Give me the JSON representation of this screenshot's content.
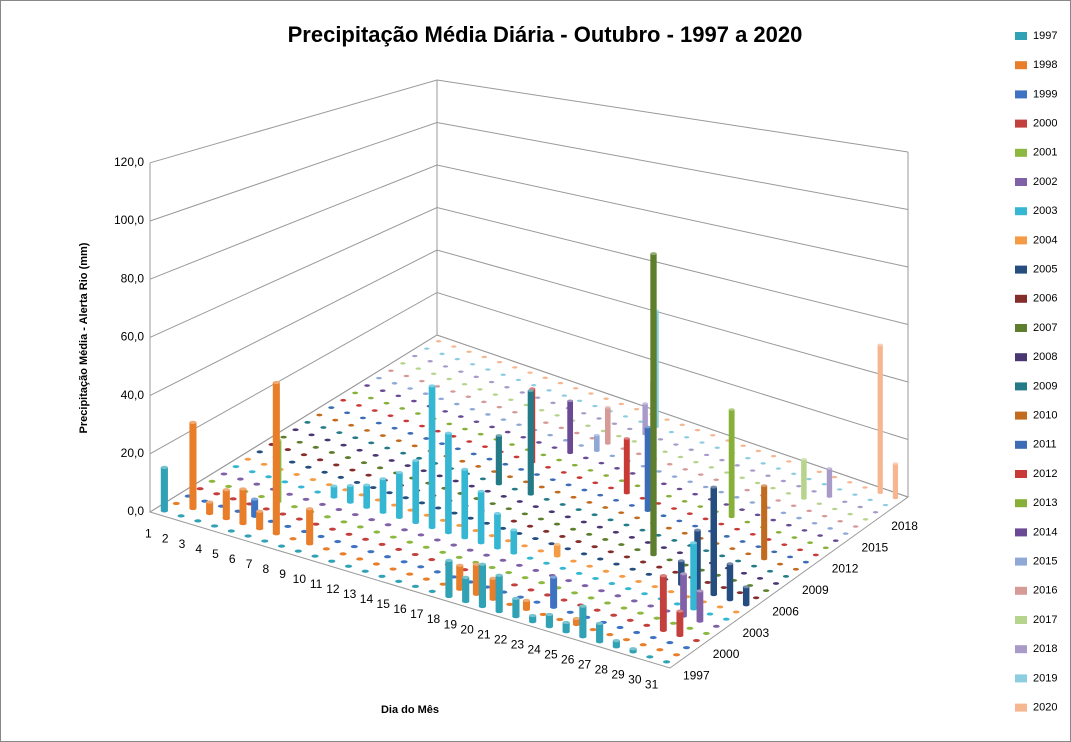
{
  "chart_data": {
    "type": "bar3d",
    "title": "Precipitação Média Diária - Outubro - 1997 a 2020",
    "x_label": "Dia do Mês",
    "y_label": "Precipitação Média - Alerta Rio (mm)",
    "categories": [
      "1",
      "2",
      "3",
      "4",
      "5",
      "6",
      "7",
      "8",
      "9",
      "10",
      "11",
      "12",
      "13",
      "14",
      "15",
      "16",
      "17",
      "18",
      "19",
      "20",
      "21",
      "22",
      "23",
      "24",
      "25",
      "26",
      "27",
      "28",
      "29",
      "30",
      "31"
    ],
    "ylim": [
      0,
      120
    ],
    "yticks": [
      {
        "value": 0,
        "label": "0,0"
      },
      {
        "value": 20,
        "label": "20,0"
      },
      {
        "value": 40,
        "label": "40,0"
      },
      {
        "value": 60,
        "label": "60,0"
      },
      {
        "value": 80,
        "label": "80,0"
      },
      {
        "value": 100,
        "label": "100,0"
      },
      {
        "value": 120,
        "label": "120,0"
      }
    ],
    "grid": true,
    "series": [
      {
        "name": "1997",
        "color": "#31a2b5",
        "values": [
          15,
          0,
          0,
          0,
          0,
          0,
          0,
          0,
          0,
          0,
          0,
          0,
          0,
          0,
          0,
          0,
          0,
          12,
          8,
          14,
          12,
          6,
          2,
          4,
          3,
          10,
          6,
          2,
          1,
          0,
          0
        ]
      },
      {
        "name": "1998",
        "color": "#e87d2a",
        "values": [
          0,
          30,
          4,
          10,
          12,
          6,
          52,
          0,
          12,
          0,
          0,
          0,
          0,
          0,
          0,
          0,
          0,
          8,
          10,
          7,
          0,
          3,
          0,
          0,
          2,
          0,
          0,
          0,
          0,
          0,
          0
        ]
      },
      {
        "name": "1999",
        "color": "#3e73c4",
        "values": [
          0,
          0,
          0,
          0,
          6,
          0,
          0,
          0,
          0,
          0,
          0,
          0,
          0,
          0,
          0,
          0,
          0,
          0,
          0,
          0,
          0,
          0,
          10,
          0,
          0,
          0,
          0,
          0,
          0,
          0,
          0
        ]
      },
      {
        "name": "2000",
        "color": "#c4403c",
        "values": [
          0,
          0,
          0,
          0,
          0,
          0,
          0,
          0,
          0,
          0,
          0,
          0,
          0,
          0,
          0,
          0,
          0,
          0,
          0,
          0,
          0,
          0,
          0,
          0,
          0,
          0,
          0,
          0,
          18,
          8,
          0
        ]
      },
      {
        "name": "2001",
        "color": "#8cb83f",
        "values": [
          0,
          0,
          0,
          0,
          22,
          0,
          0,
          0,
          0,
          0,
          0,
          0,
          0,
          0,
          0,
          0,
          0,
          0,
          0,
          0,
          0,
          0,
          0,
          0,
          0,
          0,
          0,
          0,
          0,
          0,
          0
        ]
      },
      {
        "name": "2002",
        "color": "#8061a8",
        "values": [
          0,
          0,
          0,
          0,
          0,
          0,
          0,
          0,
          0,
          0,
          0,
          0,
          0,
          0,
          0,
          0,
          0,
          0,
          0,
          0,
          0,
          0,
          0,
          0,
          0,
          0,
          0,
          0,
          14,
          10,
          0
        ]
      },
      {
        "name": "2003",
        "color": "#35b7d4",
        "values": [
          0,
          0,
          0,
          0,
          0,
          0,
          4,
          6,
          8,
          12,
          16,
          22,
          50,
          35,
          24,
          18,
          12,
          8,
          0,
          0,
          0,
          0,
          0,
          0,
          0,
          0,
          0,
          0,
          22,
          0,
          0
        ]
      },
      {
        "name": "2004",
        "color": "#f59b45",
        "values": [
          0,
          0,
          0,
          0,
          0,
          0,
          0,
          0,
          0,
          0,
          0,
          0,
          0,
          0,
          0,
          0,
          0,
          0,
          0,
          4,
          0,
          0,
          0,
          0,
          0,
          0,
          0,
          0,
          0,
          0,
          0
        ]
      },
      {
        "name": "2005",
        "color": "#264d7f",
        "values": [
          0,
          0,
          0,
          0,
          0,
          0,
          0,
          0,
          0,
          0,
          0,
          0,
          0,
          0,
          0,
          0,
          0,
          0,
          0,
          0,
          0,
          0,
          0,
          0,
          0,
          0,
          8,
          20,
          36,
          12,
          6
        ]
      },
      {
        "name": "2006",
        "color": "#842d2b",
        "values": [
          0,
          0,
          0,
          0,
          0,
          0,
          0,
          0,
          0,
          0,
          0,
          0,
          0,
          0,
          0,
          0,
          0,
          0,
          0,
          0,
          0,
          0,
          0,
          0,
          0,
          0,
          0,
          0,
          0,
          0,
          0
        ]
      },
      {
        "name": "2007",
        "color": "#5d7f2d",
        "values": [
          0,
          0,
          0,
          0,
          0,
          0,
          0,
          0,
          0,
          0,
          0,
          0,
          0,
          0,
          0,
          0,
          0,
          0,
          0,
          0,
          0,
          0,
          0,
          104,
          0,
          0,
          0,
          0,
          0,
          0,
          0
        ]
      },
      {
        "name": "2008",
        "color": "#4a3670",
        "values": [
          0,
          0,
          0,
          0,
          0,
          0,
          0,
          0,
          0,
          0,
          0,
          0,
          0,
          0,
          0,
          0,
          0,
          0,
          0,
          0,
          0,
          0,
          0,
          0,
          0,
          0,
          0,
          0,
          0,
          0,
          0
        ]
      },
      {
        "name": "2009",
        "color": "#247a87",
        "values": [
          0,
          0,
          0,
          0,
          0,
          0,
          0,
          0,
          0,
          0,
          0,
          0,
          18,
          0,
          38,
          0,
          0,
          0,
          0,
          0,
          0,
          0,
          0,
          0,
          0,
          0,
          0,
          0,
          0,
          0,
          0
        ]
      },
      {
        "name": "2010",
        "color": "#c26b1f",
        "values": [
          0,
          0,
          0,
          0,
          0,
          0,
          0,
          0,
          0,
          0,
          0,
          0,
          0,
          0,
          0,
          0,
          0,
          0,
          0,
          0,
          0,
          0,
          0,
          0,
          0,
          0,
          0,
          0,
          25,
          0,
          0
        ]
      },
      {
        "name": "2011",
        "color": "#3b6cb5",
        "values": [
          0,
          0,
          0,
          0,
          0,
          0,
          0,
          0,
          0,
          0,
          0,
          0,
          0,
          0,
          0,
          0,
          0,
          0,
          0,
          0,
          30,
          0,
          0,
          0,
          0,
          0,
          0,
          0,
          0,
          0,
          0
        ]
      },
      {
        "name": "2012",
        "color": "#c93a37",
        "values": [
          0,
          0,
          0,
          0,
          0,
          0,
          0,
          0,
          0,
          0,
          0,
          0,
          28,
          0,
          0,
          0,
          0,
          0,
          20,
          0,
          0,
          0,
          0,
          0,
          0,
          0,
          0,
          0,
          0,
          0,
          0
        ]
      },
      {
        "name": "2013",
        "color": "#86b037",
        "values": [
          0,
          0,
          0,
          0,
          0,
          0,
          0,
          0,
          0,
          0,
          0,
          0,
          0,
          0,
          0,
          0,
          0,
          0,
          0,
          40,
          0,
          0,
          0,
          0,
          38,
          0,
          0,
          0,
          0,
          0,
          0
        ]
      },
      {
        "name": "2014",
        "color": "#6a4a94",
        "values": [
          0,
          0,
          0,
          0,
          0,
          0,
          0,
          0,
          0,
          0,
          0,
          0,
          0,
          20,
          0,
          0,
          0,
          0,
          0,
          0,
          0,
          0,
          0,
          0,
          0,
          0,
          0,
          0,
          0,
          0,
          0
        ]
      },
      {
        "name": "2015",
        "color": "#8fa8d6",
        "values": [
          0,
          0,
          0,
          0,
          0,
          0,
          0,
          0,
          0,
          0,
          0,
          0,
          0,
          0,
          6,
          0,
          0,
          0,
          0,
          0,
          0,
          0,
          0,
          0,
          0,
          0,
          0,
          0,
          0,
          0,
          0
        ]
      },
      {
        "name": "2016",
        "color": "#d69a97",
        "values": [
          0,
          0,
          0,
          0,
          0,
          0,
          0,
          0,
          0,
          0,
          0,
          0,
          0,
          0,
          14,
          0,
          0,
          0,
          0,
          0,
          0,
          0,
          0,
          0,
          0,
          0,
          0,
          0,
          0,
          0,
          0
        ]
      },
      {
        "name": "2017",
        "color": "#b7d48d",
        "values": [
          0,
          0,
          0,
          0,
          0,
          0,
          0,
          0,
          0,
          0,
          0,
          0,
          0,
          0,
          0,
          0,
          0,
          0,
          0,
          0,
          0,
          0,
          0,
          0,
          0,
          0,
          14,
          0,
          0,
          0,
          0
        ]
      },
      {
        "name": "2018",
        "color": "#a99bc9",
        "values": [
          0,
          0,
          0,
          0,
          0,
          0,
          0,
          0,
          0,
          0,
          0,
          0,
          0,
          0,
          0,
          12,
          0,
          0,
          0,
          0,
          0,
          0,
          0,
          0,
          0,
          0,
          0,
          10,
          0,
          0,
          0
        ]
      },
      {
        "name": "2019",
        "color": "#8ccde0",
        "values": [
          0,
          0,
          0,
          0,
          0,
          0,
          0,
          0,
          0,
          0,
          0,
          0,
          0,
          0,
          0,
          46,
          0,
          0,
          0,
          0,
          0,
          0,
          0,
          0,
          0,
          0,
          0,
          0,
          0,
          0,
          0
        ]
      },
      {
        "name": "2020",
        "color": "#f5b690",
        "values": [
          0,
          0,
          0,
          0,
          0,
          0,
          0,
          0,
          0,
          0,
          0,
          0,
          0,
          0,
          0,
          0,
          0,
          0,
          0,
          0,
          0,
          0,
          0,
          0,
          0,
          0,
          0,
          0,
          0,
          52,
          12
        ]
      }
    ]
  }
}
